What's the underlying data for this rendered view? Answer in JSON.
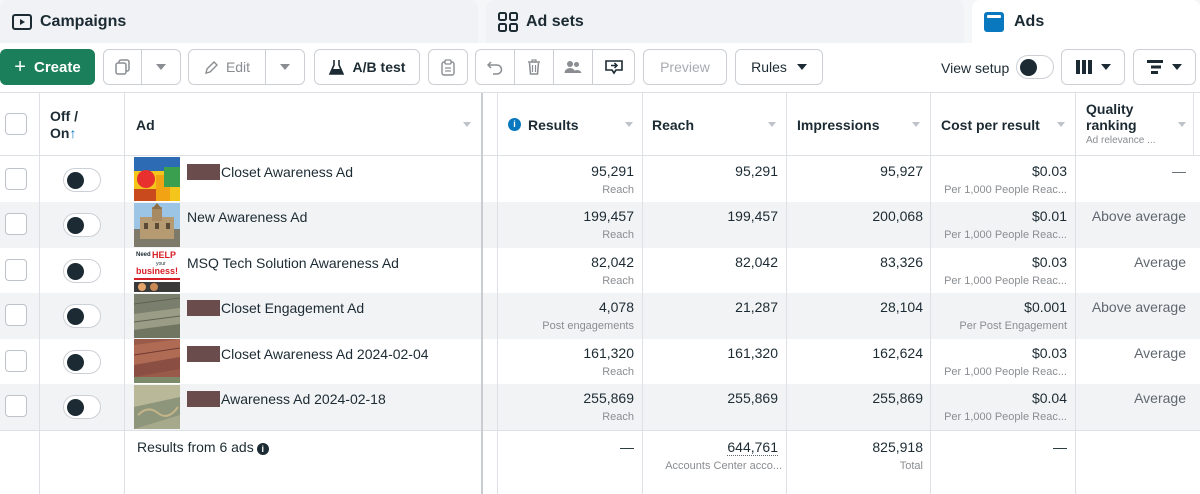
{
  "tabs": {
    "campaigns": "Campaigns",
    "adsets": "Ad sets",
    "ads": "Ads"
  },
  "toolbar": {
    "create": "Create",
    "edit": "Edit",
    "ab_test": "A/B test",
    "preview": "Preview",
    "rules": "Rules",
    "view_setup": "View setup"
  },
  "columns": {
    "off_on_1": "Off /",
    "off_on_2": "On",
    "ad": "Ad",
    "results": "Results",
    "reach": "Reach",
    "impressions": "Impressions",
    "cost_per_result": "Cost per result",
    "quality_1": "Quality",
    "quality_2": "ranking",
    "quality_sub": "Ad relevance ..."
  },
  "rows": [
    {
      "name": "Closet Awareness Ad",
      "results": "95,291",
      "results_sub": "Reach",
      "reach": "95,291",
      "impressions": "95,927",
      "cost": "$0.03",
      "cost_sub": "Per 1,000 People Reac...",
      "quality": "—"
    },
    {
      "name": "New Awareness Ad",
      "results": "199,457",
      "results_sub": "Reach",
      "reach": "199,457",
      "impressions": "200,068",
      "cost": "$0.01",
      "cost_sub": "Per 1,000 People Reac...",
      "quality": "Above average"
    },
    {
      "name": "MSQ Tech Solution Awareness Ad",
      "results": "82,042",
      "results_sub": "Reach",
      "reach": "82,042",
      "impressions": "83,326",
      "cost": "$0.03",
      "cost_sub": "Per 1,000 People Reac...",
      "quality": "Average"
    },
    {
      "name": "Closet Engagement Ad",
      "results": "4,078",
      "results_sub": "Post engagements",
      "reach": "21,287",
      "impressions": "28,104",
      "cost": "$0.001",
      "cost_sub": "Per Post Engagement",
      "quality": "Above average"
    },
    {
      "name": "Closet Awareness Ad 2024-02-04",
      "results": "161,320",
      "results_sub": "Reach",
      "reach": "161,320",
      "impressions": "162,624",
      "cost": "$0.03",
      "cost_sub": "Per 1,000 People Reac...",
      "quality": "Average"
    },
    {
      "name": "Awareness Ad 2024-02-18",
      "results": "255,869",
      "results_sub": "Reach",
      "reach": "255,869",
      "impressions": "255,869",
      "cost": "$0.04",
      "cost_sub": "Per 1,000 People Reac...",
      "quality": "Average"
    }
  ],
  "thumb3_text": {
    "l1": "Need",
    "l2": "HELP",
    "l3": "your",
    "l4": "business!"
  },
  "footer": {
    "label": "Results from 6 ads",
    "results": "—",
    "reach": "644,761",
    "reach_sub": "Accounts Center acco...",
    "impressions": "825,918",
    "impressions_sub": "Total",
    "cost": "—"
  },
  "colors": {
    "create_green": "#1a7f5a",
    "accent_blue": "#0a78be",
    "row_alt": "#f2f3f5",
    "redaction": "#6b4c4c"
  }
}
